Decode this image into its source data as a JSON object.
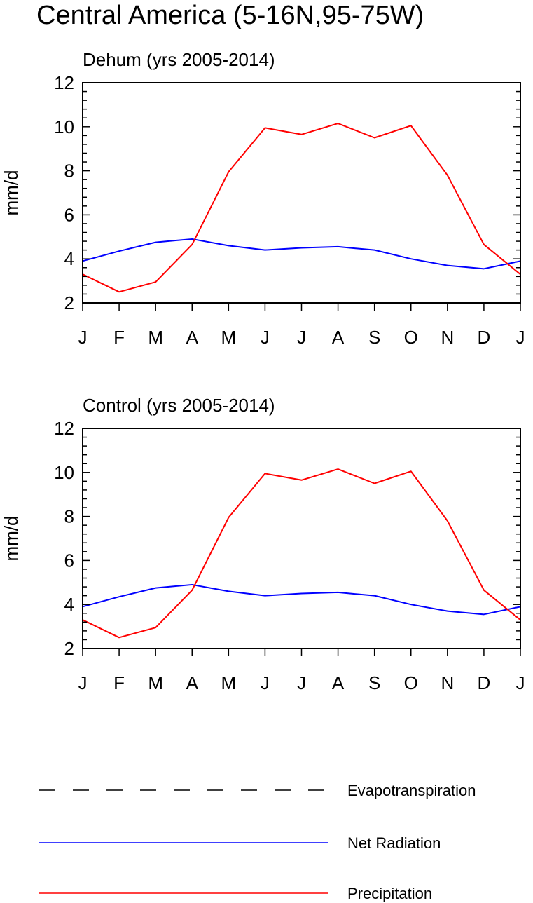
{
  "title": "Central America (5-16N,95-75W)",
  "colors": {
    "Evapotranspiration": "#000000",
    "Net Radiation": "#0000ff",
    "Precipitation": "#ff0000"
  },
  "chart_data": [
    {
      "type": "line",
      "title": "Dehum (yrs 2005-2014)",
      "xlabel": "",
      "ylabel": "mm/d",
      "ylim": [
        2,
        12
      ],
      "yticks": [
        2,
        4,
        6,
        8,
        10,
        12
      ],
      "categories": [
        "J",
        "F",
        "M",
        "A",
        "M",
        "J",
        "J",
        "A",
        "S",
        "O",
        "N",
        "D",
        "J"
      ],
      "series": [
        {
          "name": "Net Radiation",
          "values": [
            3.9,
            4.35,
            4.75,
            4.9,
            4.6,
            4.4,
            4.5,
            4.55,
            4.4,
            4.0,
            3.7,
            3.55,
            3.9
          ]
        },
        {
          "name": "Precipitation",
          "values": [
            3.3,
            2.5,
            2.95,
            4.65,
            7.95,
            9.95,
            9.65,
            10.15,
            9.5,
            10.05,
            7.8,
            4.65,
            3.3
          ]
        }
      ]
    },
    {
      "type": "line",
      "title": "Control (yrs 2005-2014)",
      "xlabel": "",
      "ylabel": "mm/d",
      "ylim": [
        2,
        12
      ],
      "yticks": [
        2,
        4,
        6,
        8,
        10,
        12
      ],
      "categories": [
        "J",
        "F",
        "M",
        "A",
        "M",
        "J",
        "J",
        "A",
        "S",
        "O",
        "N",
        "D",
        "J"
      ],
      "series": [
        {
          "name": "Net Radiation",
          "values": [
            3.9,
            4.35,
            4.75,
            4.9,
            4.6,
            4.4,
            4.5,
            4.55,
            4.4,
            4.0,
            3.7,
            3.55,
            3.9
          ]
        },
        {
          "name": "Precipitation",
          "values": [
            3.3,
            2.5,
            2.95,
            4.65,
            7.95,
            9.95,
            9.65,
            10.15,
            9.5,
            10.05,
            7.8,
            4.65,
            3.3
          ]
        }
      ]
    }
  ],
  "legend": [
    {
      "label": "Evapotranspiration",
      "color": "#000000",
      "style": "dashed"
    },
    {
      "label": "Net Radiation",
      "color": "#0000ff",
      "style": "solid"
    },
    {
      "label": "Precipitation",
      "color": "#ff0000",
      "style": "solid"
    }
  ]
}
